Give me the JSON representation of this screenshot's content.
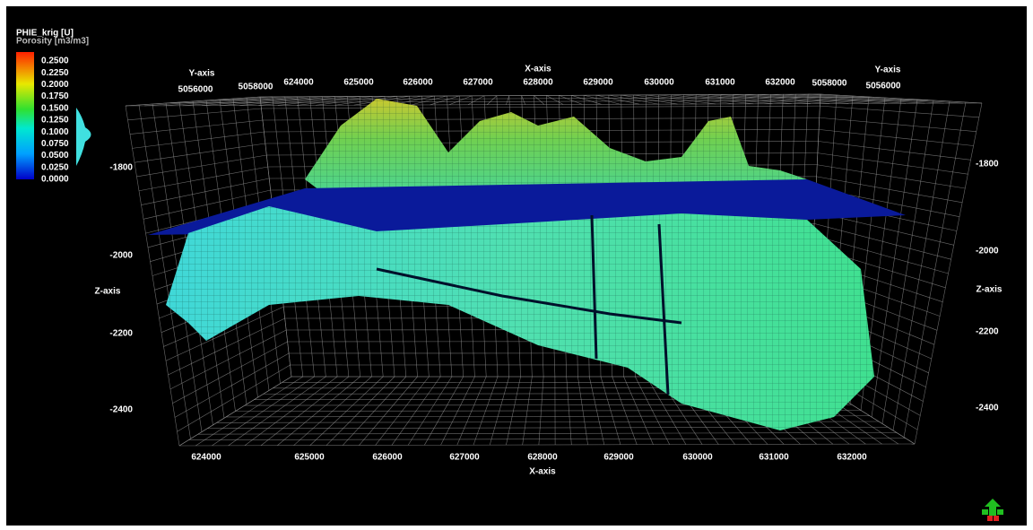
{
  "legend": {
    "title": "PHIE_krig [U]",
    "subtitle": "Porosity [m3/m3]",
    "ticks": [
      "0.2500",
      "0.2250",
      "0.2000",
      "0.1750",
      "0.1500",
      "0.1250",
      "0.1000",
      "0.0750",
      "0.0500",
      "0.0250",
      "0.0000"
    ]
  },
  "axes": {
    "x_top": {
      "label": "X-axis",
      "ticks": [
        "624000",
        "625000",
        "626000",
        "627000",
        "628000",
        "629000",
        "630000",
        "631000",
        "632000"
      ]
    },
    "x_bottom": {
      "label": "X-axis",
      "ticks": [
        "624000",
        "625000",
        "626000",
        "627000",
        "628000",
        "629000",
        "630000",
        "631000",
        "632000"
      ]
    },
    "y_left": {
      "label": "Y-axis",
      "ticks": [
        "5056000",
        "5058000"
      ]
    },
    "y_right": {
      "label": "Y-axis",
      "ticks": [
        "5058000",
        "5056000"
      ]
    },
    "z_left": {
      "label": "Z-axis",
      "ticks": [
        "-1800",
        "-2000",
        "-2200",
        "-2400"
      ]
    },
    "z_right": {
      "label": "Z-axis",
      "ticks": [
        "-1800",
        "-2000",
        "-2200",
        "-2400"
      ]
    }
  }
}
